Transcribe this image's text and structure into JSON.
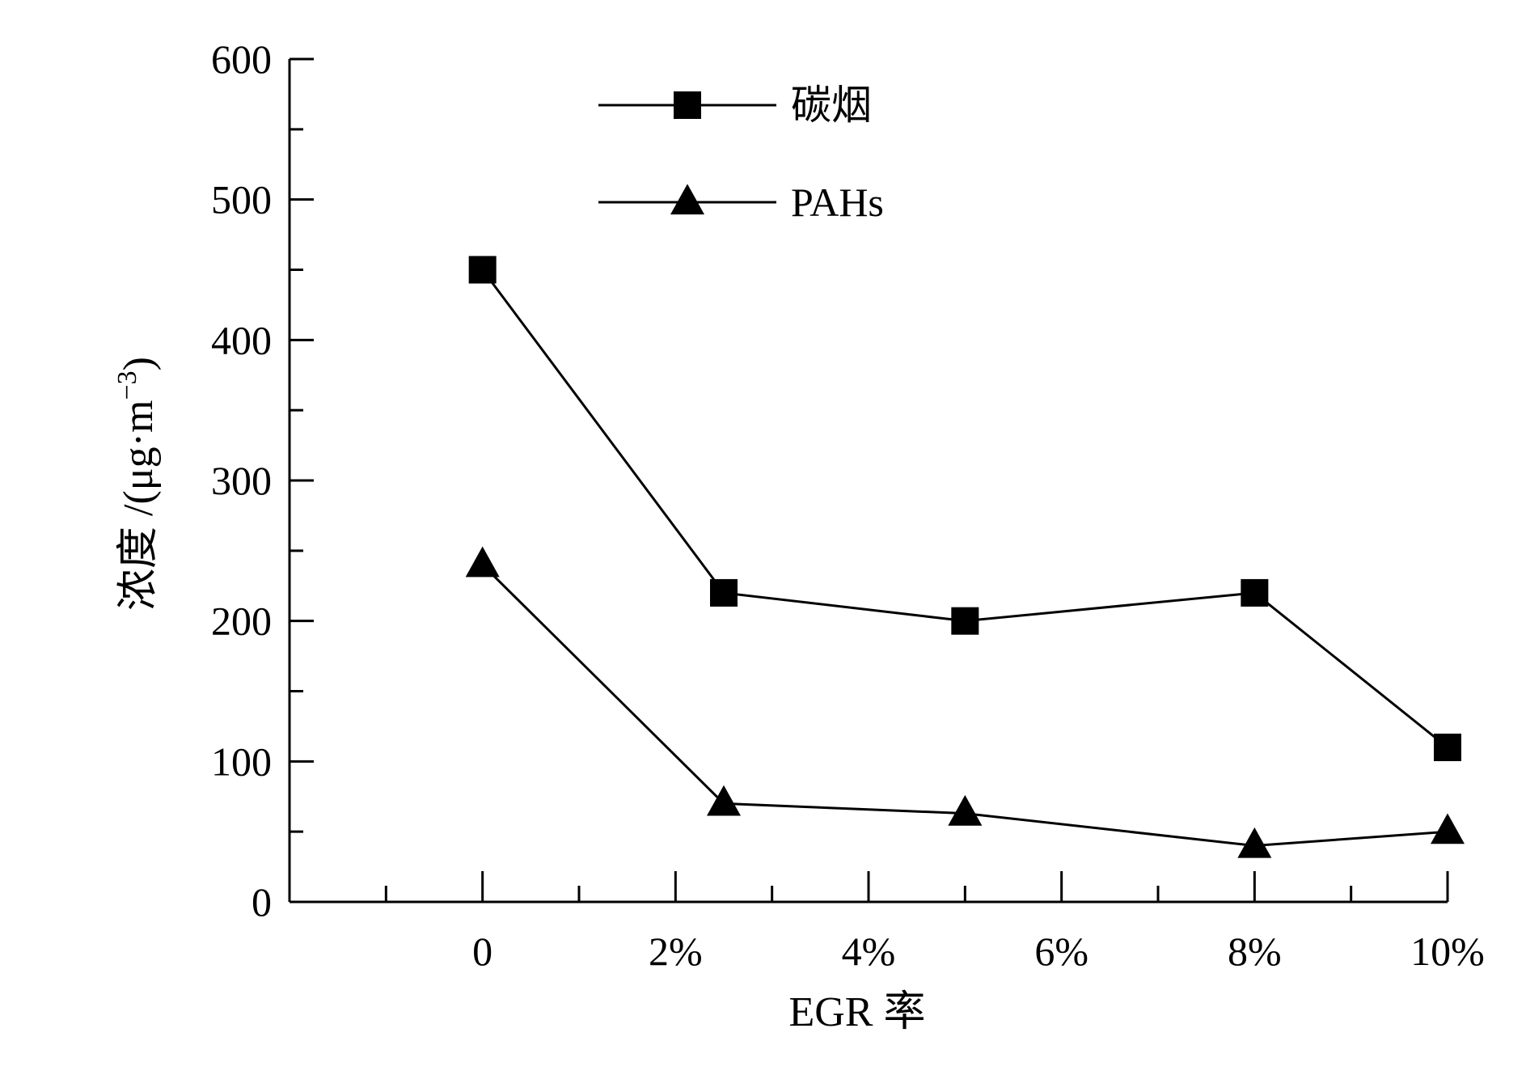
{
  "chart_data": {
    "type": "line",
    "xlabel": "EGR 率",
    "ylabel": "浓度 /(μg·m",
    "ylabel_superscript": "−3",
    "ylabel_close": ")",
    "x_tick_labels": [
      "0",
      "2%",
      "4%",
      "6%",
      "8%",
      "10%"
    ],
    "x_tick_values": [
      0,
      2,
      4,
      6,
      8,
      10
    ],
    "xlim": [
      -2,
      10
    ],
    "ylim": [
      0,
      600
    ],
    "y_tick_values": [
      0,
      100,
      200,
      300,
      400,
      500,
      600
    ],
    "y_tick_labels": [
      "0",
      "100",
      "200",
      "300",
      "400",
      "500",
      "600"
    ],
    "y_minor_step": 50,
    "x_minor_step": 1,
    "grid": false,
    "legend_position": "top-center",
    "series": [
      {
        "name": "碳烟",
        "marker": "square",
        "x": [
          0,
          2.5,
          5,
          8,
          10
        ],
        "values": [
          450,
          220,
          200,
          220,
          110
        ]
      },
      {
        "name": "PAHs",
        "marker": "triangle",
        "x": [
          0,
          2.5,
          5,
          8,
          10
        ],
        "values": [
          240,
          70,
          63,
          40,
          50
        ]
      }
    ]
  }
}
